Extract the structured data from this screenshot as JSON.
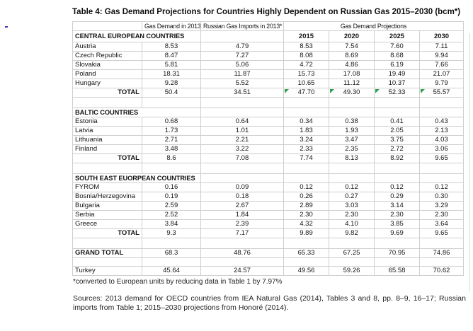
{
  "title": "Table 4: Gas Demand Projections for Countries Highly Dependent on Russian Gas 2015–2030 (bcm*)",
  "table": {
    "headers": {
      "demand_2013": "Gas Demand in 2013",
      "russian_imports_2013": "Russian Gas Imports in 2013*",
      "projections": "Gas Demand Projections",
      "years": [
        "2015",
        "2020",
        "2025",
        "2030"
      ]
    },
    "sections": [
      {
        "name": "CENTRAL EUROPEAN COUNTRIES",
        "rows": [
          {
            "country": "Austria",
            "values": [
              "8.53",
              "4.79",
              "8.53",
              "7.54",
              "7.60",
              "7.11"
            ]
          },
          {
            "country": "Czech Republic",
            "values": [
              "8.47",
              "7.27",
              "8.08",
              "8.69",
              "8.68",
              "9.94"
            ]
          },
          {
            "country": "Slovakia",
            "values": [
              "5.81",
              "5.06",
              "4.72",
              "4.86",
              "6.19",
              "7.66"
            ]
          },
          {
            "country": "Poland",
            "values": [
              "18.31",
              "11.87",
              "15.73",
              "17.08",
              "19.49",
              "21.07"
            ]
          },
          {
            "country": "Hungary",
            "values": [
              "9.28",
              "5.52",
              "10.65",
              "11.12",
              "10.37",
              "9.79"
            ]
          }
        ],
        "total": {
          "label": "TOTAL",
          "values": [
            "50.4",
            "34.51",
            "47.70",
            "49.30",
            "52.33",
            "55.57"
          ],
          "flagged_from": 2
        }
      },
      {
        "name": "BALTIC COUNTRIES",
        "rows": [
          {
            "country": "Estonia",
            "values": [
              "0.68",
              "0.64",
              "0.34",
              "0.38",
              "0.41",
              "0.43"
            ]
          },
          {
            "country": "Latvia",
            "values": [
              "1.73",
              "1.01",
              "1.83",
              "1.93",
              "2.05",
              "2.13"
            ]
          },
          {
            "country": "Lithuania",
            "values": [
              "2.71",
              "2.21",
              "3.24",
              "3.47",
              "3.75",
              "4.03"
            ]
          },
          {
            "country": "Finland",
            "values": [
              "3.48",
              "3.22",
              "2.33",
              "2.35",
              "2.72",
              "3.06"
            ]
          }
        ],
        "total": {
          "label": "TOTAL",
          "values": [
            "8.6",
            "7.08",
            "7.74",
            "8.13",
            "8.92",
            "9.65"
          ]
        }
      },
      {
        "name": "SOUTH EAST EUORPEAN  COUNTRIES",
        "rows": [
          {
            "country": "FYROM",
            "values": [
              "0.16",
              "0.09",
              "0.12",
              "0.12",
              "0.12",
              "0.12"
            ]
          },
          {
            "country": "Bosnia/Herzegovina",
            "values": [
              "0.19",
              "0.18",
              "0.26",
              "0.27",
              "0.29",
              "0.30"
            ]
          },
          {
            "country": "Bulgaria",
            "values": [
              "2.59",
              "2.67",
              "2.89",
              "3.03",
              "3.14",
              "3.29"
            ]
          },
          {
            "country": "Serbia",
            "values": [
              "2.52",
              "1.84",
              "2.30",
              "2.30",
              "2.30",
              "2.30"
            ]
          },
          {
            "country": "Greece",
            "values": [
              "3.84",
              "2.39",
              "4.32",
              "4.10",
              "3.85",
              "3.64"
            ]
          }
        ],
        "total": {
          "label": "TOTAL",
          "values": [
            "9.3",
            "7.17",
            "9.89",
            "9.82",
            "9.69",
            "9.65"
          ]
        }
      }
    ],
    "grand_total": {
      "label": "GRAND TOTAL",
      "values": [
        "68.3",
        "48.76",
        "65.33",
        "67.25",
        "70.95",
        "74.86"
      ]
    },
    "turkey": {
      "label": "Turkey",
      "values": [
        "45.64",
        "24.57",
        "49.56",
        "59.26",
        "65.58",
        "70.62"
      ]
    },
    "flag_color": "#2f9e53"
  },
  "footnote": "*converted to European units by reducing data in Table 1 by 7.97%",
  "sources": "Sources: 2013 demand for OECD countries from IEA Natural Gas (2014), Tables 3 and 8, pp. 8–9, 16–17; Russian imports from Table 1; 2015–2030 projections from Honoré (2014)."
}
